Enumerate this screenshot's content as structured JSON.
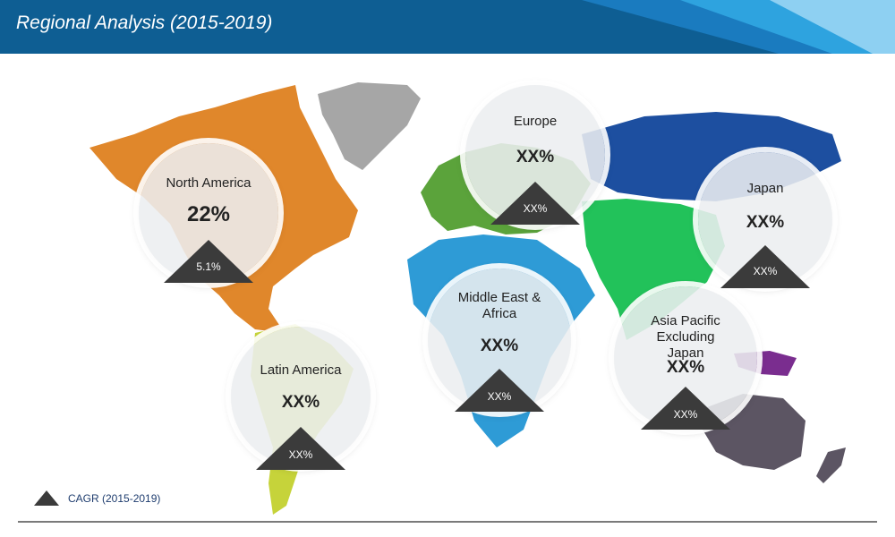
{
  "header": {
    "title": "Regional Analysis (2015-2019)",
    "background_color": "#0e5e93"
  },
  "chart_data": {
    "type": "map",
    "series": [
      {
        "region": "North America",
        "share": "22%",
        "cagr": "5.1%",
        "color": "#e0872b"
      },
      {
        "region": "Latin America",
        "share": "XX%",
        "cagr": "XX%",
        "color": "#c6d33a"
      },
      {
        "region": "Europe",
        "share": "XX%",
        "cagr": "XX%",
        "color": "#5ba33b"
      },
      {
        "region": "Middle East & Africa",
        "share": "XX%",
        "cagr": "XX%",
        "color": "#2e9bd6"
      },
      {
        "region": "Japan",
        "share": "XX%",
        "cagr": "XX%",
        "color": "#1d4fa0"
      },
      {
        "region": "Asia Pacific Excluding Japan",
        "share": "XX%",
        "cagr": "XX%",
        "color": "#22c25a"
      }
    ],
    "legend": {
      "label": "CAGR (2015-2019)",
      "icon": "triangle-icon",
      "placement": "bottom-left"
    }
  },
  "map_colors": {
    "greenland": "#a6a6a6",
    "russia": "#1d4fa0",
    "asia": "#22c25a",
    "southeast_asia": "#7a2d8f",
    "australia": "#5c5563",
    "new_zealand": "#5c5563"
  }
}
